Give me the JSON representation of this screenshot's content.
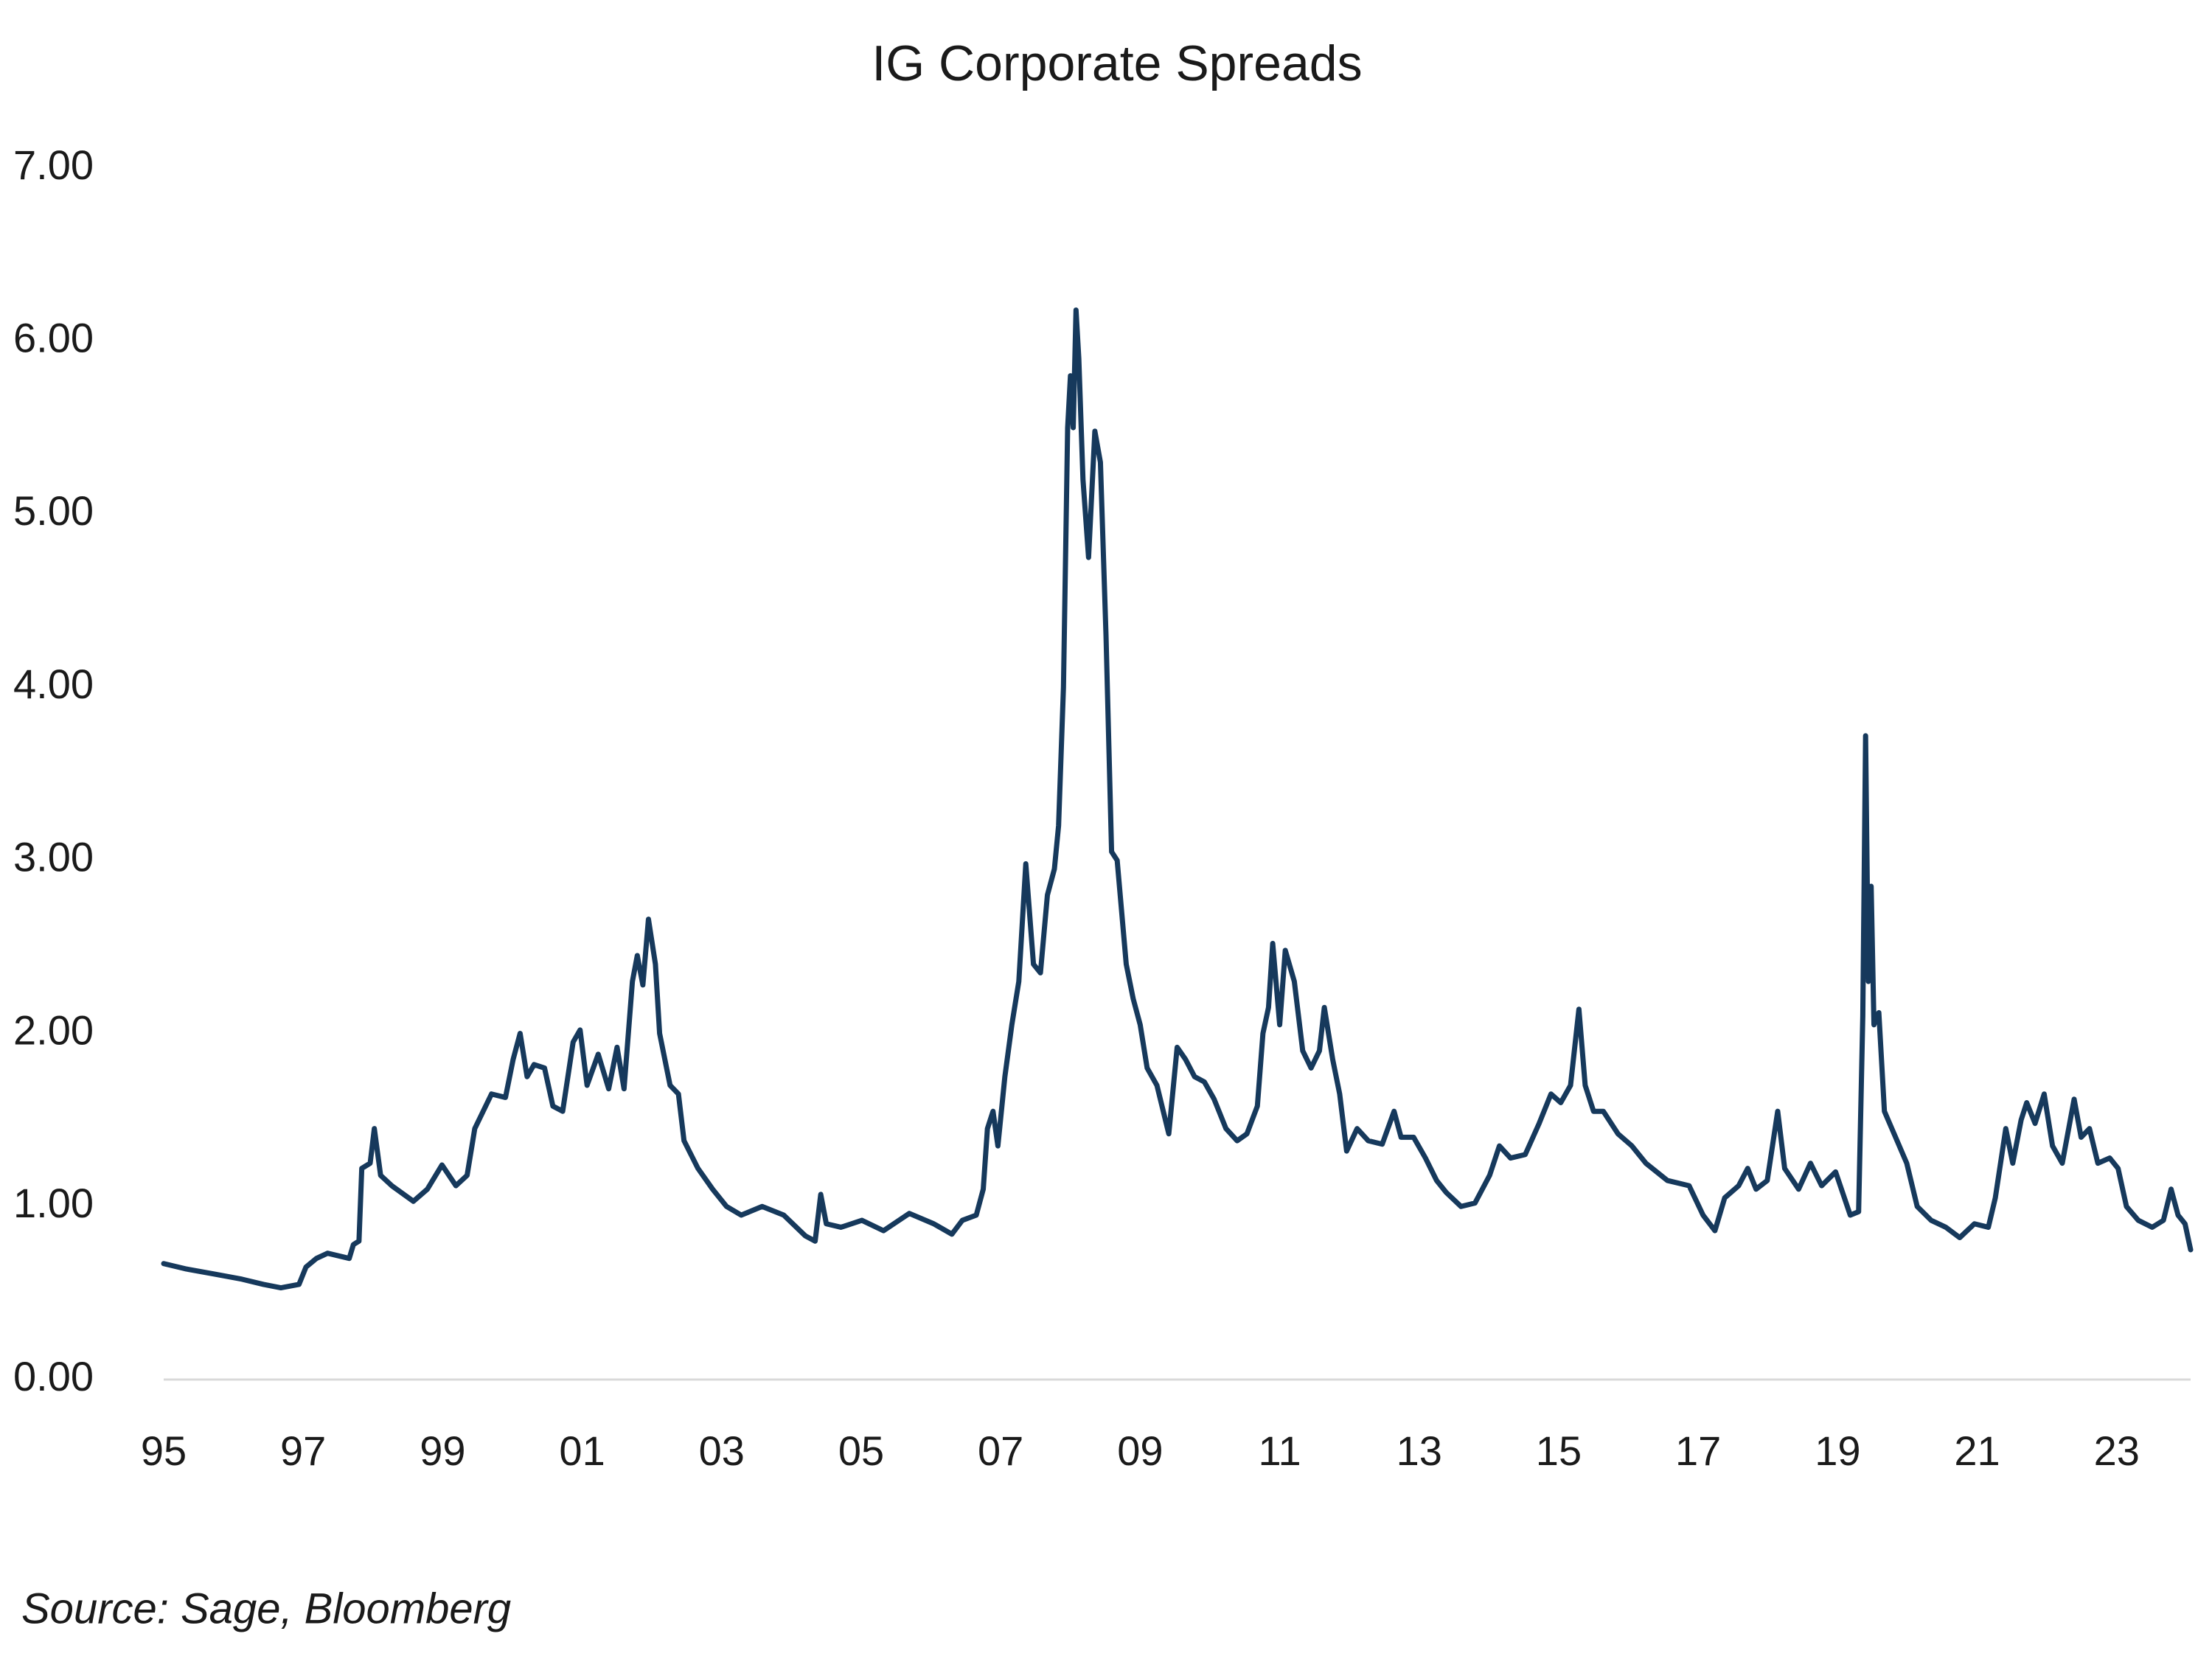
{
  "chart_data": {
    "type": "line",
    "title": "IG Corporate Spreads",
    "source": "Source: Sage, Bloomberg",
    "color": "#16395c",
    "x": [
      1995.0,
      1995.31,
      1995.72,
      1996.12,
      1996.43,
      1996.68,
      1996.94,
      1997.04,
      1997.19,
      1997.35,
      1997.66,
      1997.72,
      1997.8,
      1997.84,
      1997.96,
      1998.02,
      1998.11,
      1998.27,
      1998.58,
      1998.78,
      1998.99,
      1999.19,
      1999.35,
      1999.46,
      1999.7,
      1999.9,
      2000.01,
      2000.11,
      2000.21,
      2000.31,
      2000.46,
      2000.58,
      2000.72,
      2000.87,
      2000.97,
      2001.07,
      2001.23,
      2001.38,
      2001.5,
      2001.6,
      2001.72,
      2001.79,
      2001.87,
      2001.95,
      2002.05,
      2002.11,
      2002.26,
      2002.38,
      2002.46,
      2002.66,
      2002.87,
      2003.07,
      2003.28,
      2003.58,
      2003.89,
      2004.2,
      2004.34,
      2004.42,
      2004.5,
      2004.71,
      2005.01,
      2005.32,
      2005.69,
      2006.04,
      2006.3,
      2006.45,
      2006.65,
      2006.75,
      2006.81,
      2006.89,
      2006.96,
      2007.06,
      2007.16,
      2007.26,
      2007.36,
      2007.47,
      2007.57,
      2007.67,
      2007.77,
      2007.83,
      2007.9,
      2007.96,
      2008.0,
      2008.04,
      2008.08,
      2008.12,
      2008.18,
      2008.26,
      2008.35,
      2008.43,
      2008.51,
      2008.59,
      2008.67,
      2008.8,
      2008.9,
      2009.0,
      2009.1,
      2009.24,
      2009.41,
      2009.53,
      2009.65,
      2009.78,
      2009.92,
      2010.06,
      2010.23,
      2010.39,
      2010.53,
      2010.68,
      2010.76,
      2010.84,
      2010.9,
      2011.0,
      2011.08,
      2011.21,
      2011.33,
      2011.45,
      2011.57,
      2011.64,
      2011.76,
      2011.86,
      2011.96,
      2012.11,
      2012.27,
      2012.47,
      2012.64,
      2012.74,
      2012.92,
      2013.09,
      2013.25,
      2013.39,
      2013.6,
      2013.8,
      2014.01,
      2014.15,
      2014.31,
      2014.52,
      2014.72,
      2014.89,
      2015.03,
      2015.17,
      2015.29,
      2015.38,
      2015.5,
      2015.64,
      2015.85,
      2016.05,
      2016.25,
      2016.56,
      2016.87,
      2017.07,
      2017.24,
      2017.38,
      2017.58,
      2017.71,
      2017.83,
      2017.99,
      2018.14,
      2018.24,
      2018.44,
      2018.61,
      2018.77,
      2018.97,
      2019.18,
      2019.3,
      2019.36,
      2019.4,
      2019.44,
      2019.48,
      2019.52,
      2019.59,
      2019.67,
      2019.83,
      2019.99,
      2020.14,
      2020.34,
      2020.55,
      2020.75,
      2020.96,
      2021.16,
      2021.26,
      2021.41,
      2021.51,
      2021.63,
      2021.71,
      2021.83,
      2021.96,
      2022.08,
      2022.22,
      2022.39,
      2022.49,
      2022.61,
      2022.73,
      2022.9,
      2023.02,
      2023.14,
      2023.31,
      2023.51,
      2023.67,
      2023.78,
      2023.88,
      2023.98,
      2024.06
    ],
    "values": [
      0.67,
      0.64,
      0.61,
      0.58,
      0.55,
      0.53,
      0.55,
      0.65,
      0.7,
      0.73,
      0.7,
      0.78,
      0.8,
      1.22,
      1.25,
      1.45,
      1.18,
      1.12,
      1.03,
      1.1,
      1.24,
      1.12,
      1.18,
      1.45,
      1.65,
      1.63,
      1.85,
      2.0,
      1.75,
      1.82,
      1.8,
      1.58,
      1.55,
      1.95,
      2.02,
      1.7,
      1.88,
      1.68,
      1.92,
      1.68,
      2.3,
      2.45,
      2.28,
      2.66,
      2.4,
      2.0,
      1.7,
      1.65,
      1.38,
      1.22,
      1.1,
      1.0,
      0.95,
      1.0,
      0.95,
      0.83,
      0.8,
      1.07,
      0.9,
      0.88,
      0.92,
      0.86,
      0.96,
      0.9,
      0.84,
      0.92,
      0.95,
      1.1,
      1.45,
      1.55,
      1.35,
      1.75,
      2.05,
      2.3,
      2.98,
      2.4,
      2.35,
      2.8,
      2.95,
      3.2,
      4.0,
      5.5,
      5.8,
      5.5,
      6.18,
      5.9,
      5.2,
      4.75,
      5.48,
      5.3,
      4.3,
      3.05,
      3.0,
      2.4,
      2.2,
      2.05,
      1.8,
      1.7,
      1.42,
      1.92,
      1.85,
      1.75,
      1.72,
      1.62,
      1.45,
      1.38,
      1.42,
      1.58,
      2.0,
      2.15,
      2.52,
      2.05,
      2.48,
      2.3,
      1.9,
      1.8,
      1.9,
      2.15,
      1.85,
      1.65,
      1.32,
      1.45,
      1.38,
      1.36,
      1.55,
      1.4,
      1.4,
      1.28,
      1.15,
      1.08,
      1.0,
      1.02,
      1.18,
      1.35,
      1.28,
      1.3,
      1.48,
      1.65,
      1.6,
      1.7,
      2.14,
      1.7,
      1.55,
      1.55,
      1.42,
      1.35,
      1.25,
      1.15,
      1.12,
      0.95,
      0.86,
      1.05,
      1.12,
      1.22,
      1.1,
      1.15,
      1.55,
      1.22,
      1.1,
      1.25,
      1.12,
      1.2,
      0.95,
      0.97,
      2.1,
      3.72,
      2.3,
      2.85,
      2.05,
      2.12,
      1.55,
      1.4,
      1.25,
      1.0,
      0.92,
      0.88,
      0.82,
      0.9,
      0.88,
      1.05,
      1.45,
      1.25,
      1.5,
      1.6,
      1.48,
      1.65,
      1.35,
      1.25,
      1.62,
      1.4,
      1.45,
      1.25,
      1.28,
      1.22,
      1.0,
      0.92,
      0.88,
      0.92,
      1.1,
      0.95,
      0.9,
      0.75
    ],
    "xlim": [
      1995,
      2024.06
    ],
    "xticks": [
      {
        "value": 1995,
        "label": "95"
      },
      {
        "value": 1997,
        "label": "97"
      },
      {
        "value": 1999,
        "label": "99"
      },
      {
        "value": 2001,
        "label": "01"
      },
      {
        "value": 2003,
        "label": "03"
      },
      {
        "value": 2005,
        "label": "05"
      },
      {
        "value": 2007,
        "label": "07"
      },
      {
        "value": 2009,
        "label": "09"
      },
      {
        "value": 2011,
        "label": "11"
      },
      {
        "value": 2013,
        "label": "13"
      },
      {
        "value": 2015,
        "label": "15"
      },
      {
        "value": 2017,
        "label": "17"
      },
      {
        "value": 2019,
        "label": "19"
      },
      {
        "value": 2021,
        "label": "21"
      },
      {
        "value": 2023,
        "label": "23"
      }
    ],
    "ylim": [
      0,
      7
    ],
    "yticks": [
      {
        "value": 0,
        "label": "0.00"
      },
      {
        "value": 1,
        "label": "1.00"
      },
      {
        "value": 2,
        "label": "2.00"
      },
      {
        "value": 3,
        "label": "3.00"
      },
      {
        "value": 4,
        "label": "4.00"
      },
      {
        "value": 5,
        "label": "5.00"
      },
      {
        "value": 6,
        "label": "6.00"
      },
      {
        "value": 7,
        "label": "7.00"
      }
    ],
    "grid": false
  }
}
